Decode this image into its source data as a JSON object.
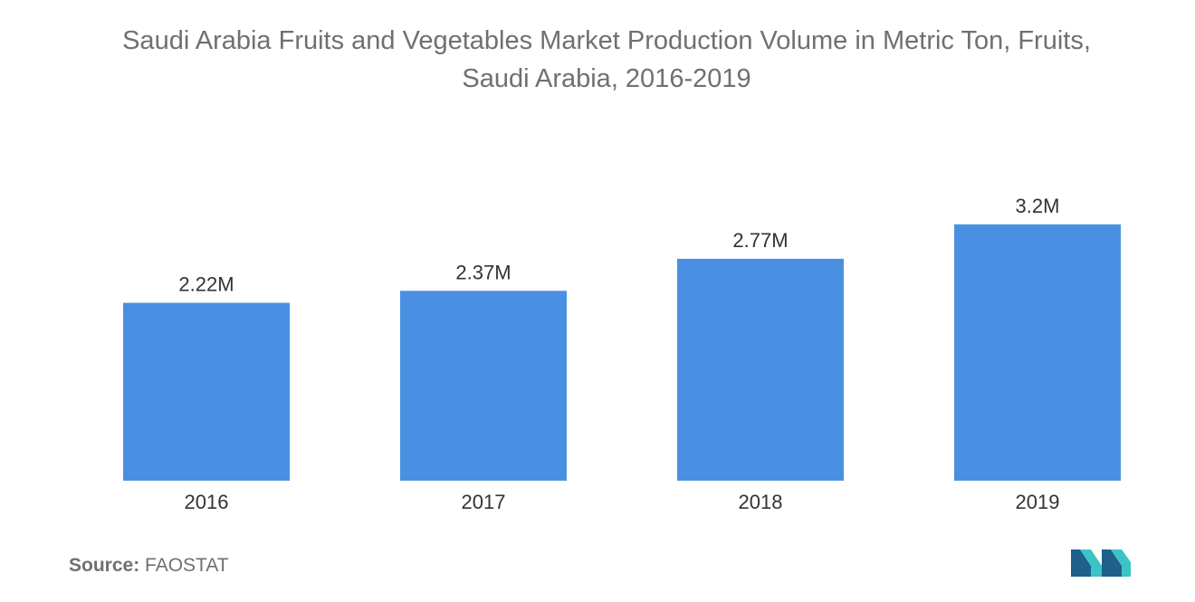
{
  "chart_data": {
    "type": "bar",
    "title": "Saudi Arabia Fruits and Vegetables Market Production Volume in Metric Ton, Fruits,\nSaudi Arabia, 2016-2019",
    "categories": [
      "2016",
      "2017",
      "2018",
      "2019"
    ],
    "values": [
      2.22,
      2.37,
      2.77,
      3.2
    ],
    "value_labels": [
      "2.22M",
      "2.37M",
      "2.77M",
      "3.2M"
    ],
    "unit": "M",
    "xlabel": "",
    "ylabel": "",
    "grid": false,
    "legend": "none",
    "bar_color": "#4a90e2"
  },
  "source": {
    "label": "Source:",
    "text": "FAOSTAT"
  },
  "logo": {
    "icon": "mordor-intelligence-logo-icon",
    "colors": [
      "#1f5f8b",
      "#3cc3c4"
    ]
  }
}
